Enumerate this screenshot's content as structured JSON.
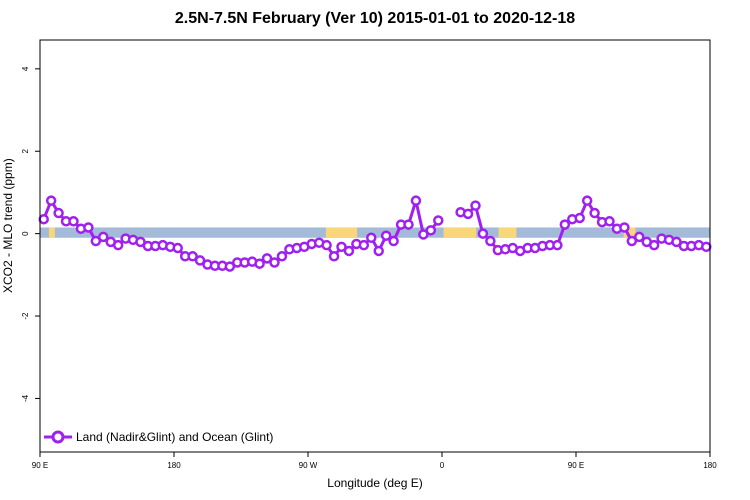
{
  "chart_data": {
    "type": "line",
    "title": "2.5N-7.5N February (Ver 10)   2015-01-01 to 2020-12-18",
    "xlabel": "Longitude (deg E)",
    "ylabel": "XCO2 - MLO trend (ppm)",
    "xlim": [
      90,
      540
    ],
    "ylim": [
      -5.3,
      4.7
    ],
    "x_ticks": [
      {
        "value": 90,
        "label": "90 E"
      },
      {
        "value": 180,
        "label": "180"
      },
      {
        "value": 270,
        "label": "90 W"
      },
      {
        "value": 360,
        "label": "0"
      },
      {
        "value": 450,
        "label": "90 E"
      },
      {
        "value": 540,
        "label": "180"
      }
    ],
    "y_ticks": [
      {
        "value": 4,
        "label": "4"
      },
      {
        "value": 2,
        "label": "2"
      },
      {
        "value": 0,
        "label": "0"
      },
      {
        "value": -2,
        "label": "-2"
      },
      {
        "value": -4,
        "label": "-4"
      }
    ],
    "grid": false,
    "legend_position": "bottom-left",
    "series": [
      {
        "name": "Land (Nadir&Glint) and Ocean (Glint)",
        "color": "#a020f0",
        "points": [
          [
            92.5,
            0.35
          ],
          [
            97.5,
            0.8
          ],
          [
            102.5,
            0.5
          ],
          [
            107.5,
            0.3
          ],
          [
            112.5,
            0.3
          ],
          [
            117.5,
            0.12
          ],
          [
            122.5,
            0.15
          ],
          [
            127.5,
            -0.18
          ],
          [
            132.5,
            -0.08
          ],
          [
            137.5,
            -0.2
          ],
          [
            142.5,
            -0.28
          ],
          [
            147.5,
            -0.12
          ],
          [
            152.5,
            -0.15
          ],
          [
            157.5,
            -0.2
          ],
          [
            162.5,
            -0.3
          ],
          [
            167.5,
            -0.3
          ],
          [
            172.5,
            -0.28
          ],
          [
            177.5,
            -0.32
          ],
          [
            182.5,
            -0.35
          ],
          [
            187.5,
            -0.55
          ],
          [
            192.5,
            -0.55
          ],
          [
            197.5,
            -0.65
          ],
          [
            202.5,
            -0.75
          ],
          [
            207.5,
            -0.78
          ],
          [
            212.5,
            -0.78
          ],
          [
            217.5,
            -0.8
          ],
          [
            222.5,
            -0.7
          ],
          [
            227.5,
            -0.7
          ],
          [
            232.5,
            -0.68
          ],
          [
            237.5,
            -0.73
          ],
          [
            242.5,
            -0.6
          ],
          [
            247.5,
            -0.7
          ],
          [
            252.5,
            -0.55
          ],
          [
            257.5,
            -0.38
          ],
          [
            262.5,
            -0.35
          ],
          [
            267.5,
            -0.32
          ],
          [
            272.5,
            -0.25
          ],
          [
            277.5,
            -0.22
          ],
          [
            282.5,
            -0.28
          ],
          [
            287.5,
            -0.55
          ],
          [
            292.5,
            -0.32
          ],
          [
            297.5,
            -0.42
          ],
          [
            302.5,
            -0.25
          ],
          [
            307.5,
            -0.28
          ],
          [
            312.5,
            -0.1
          ],
          [
            317.5,
            -0.42
          ],
          [
            322.5,
            -0.05
          ],
          [
            327.5,
            -0.18
          ],
          [
            332.5,
            0.22
          ],
          [
            337.5,
            0.22
          ],
          [
            342.5,
            0.8
          ],
          [
            347.5,
            -0.02
          ],
          [
            352.5,
            0.08
          ],
          [
            357.5,
            0.32
          ],
          [
            null,
            null
          ],
          [
            372.5,
            0.52
          ],
          [
            377.5,
            0.48
          ],
          [
            382.5,
            0.68
          ],
          [
            387.5,
            0.0
          ],
          [
            392.5,
            -0.18
          ],
          [
            397.5,
            -0.4
          ],
          [
            402.5,
            -0.38
          ],
          [
            407.5,
            -0.35
          ],
          [
            412.5,
            -0.42
          ],
          [
            417.5,
            -0.35
          ],
          [
            422.5,
            -0.35
          ],
          [
            427.5,
            -0.3
          ],
          [
            432.5,
            -0.28
          ],
          [
            437.5,
            -0.28
          ],
          [
            442.5,
            0.22
          ],
          [
            447.5,
            0.35
          ],
          [
            452.5,
            0.38
          ],
          [
            457.5,
            0.8
          ],
          [
            462.5,
            0.5
          ],
          [
            467.5,
            0.28
          ],
          [
            472.5,
            0.3
          ],
          [
            477.5,
            0.12
          ],
          [
            482.5,
            0.15
          ],
          [
            487.5,
            -0.18
          ],
          [
            492.5,
            -0.08
          ],
          [
            497.5,
            -0.2
          ],
          [
            502.5,
            -0.28
          ],
          [
            507.5,
            -0.12
          ],
          [
            512.5,
            -0.15
          ],
          [
            517.5,
            -0.2
          ],
          [
            522.5,
            -0.3
          ],
          [
            527.5,
            -0.3
          ],
          [
            532.5,
            -0.28
          ],
          [
            537.5,
            -0.32
          ]
        ]
      }
    ],
    "background_band": {
      "ymin": -0.1,
      "ymax": 0.15,
      "ocean_color": "#a3bad9",
      "land_color": "#f9d67a",
      "land_segments": [
        [
          96,
          100
        ],
        [
          282,
          303
        ],
        [
          361,
          383
        ],
        [
          398,
          410
        ],
        [
          482,
          490
        ]
      ]
    }
  }
}
